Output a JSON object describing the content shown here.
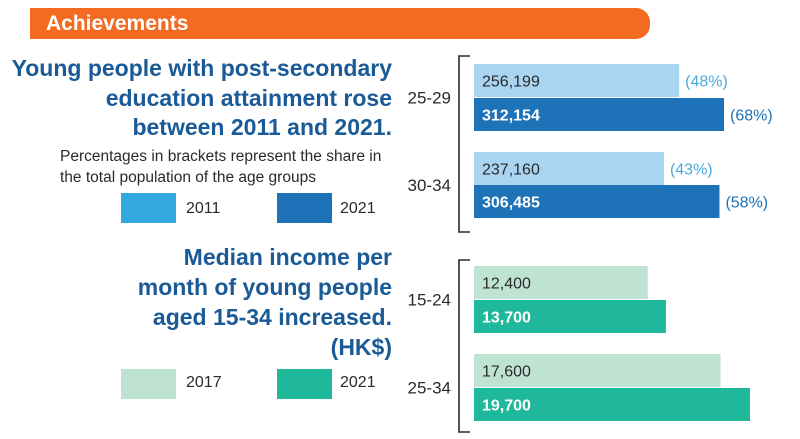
{
  "banner": {
    "title": "Achievements"
  },
  "education": {
    "headline": [
      "Young people with post-secondary",
      "education attainment rose",
      "between 2011 and 2021."
    ],
    "note": "Percentages in brackets represent the share in the total population of the age groups",
    "legend": [
      {
        "label": "2011",
        "color": "#33aadf"
      },
      {
        "label": "2021",
        "color": "#1e72b8"
      }
    ]
  },
  "income": {
    "headline": [
      "Median income per",
      "month of young people",
      "aged 15-34 increased.",
      "(HK$)"
    ],
    "legend": [
      {
        "label": "2017",
        "color": "#bfe3d3"
      },
      {
        "label": "2021",
        "color": "#1fb89a"
      }
    ]
  },
  "chart_data": [
    {
      "type": "bar",
      "orientation": "horizontal",
      "categories": [
        "25-29",
        "30-34"
      ],
      "series": [
        {
          "name": "2011",
          "values": [
            256199,
            237160
          ],
          "value_labels": [
            "256,199",
            "237,160"
          ],
          "percent_labels": [
            "(48%)",
            "(43%)"
          ],
          "color": "#a9d4f2",
          "pct_color": "#4aa8df",
          "text_color": "#2a2a2a",
          "bold": false
        },
        {
          "name": "2021",
          "values": [
            312154,
            306485
          ],
          "value_labels": [
            "312,154",
            "306,485"
          ],
          "percent_labels": [
            "(68%)",
            "(58%)"
          ],
          "color": "#1e72b8",
          "pct_color": "#1e72b8",
          "text_color": "#ffffff",
          "bold": true
        }
      ]
    },
    {
      "type": "bar",
      "orientation": "horizontal",
      "categories": [
        "15-24",
        "25-34"
      ],
      "series": [
        {
          "name": "2017",
          "values": [
            12400,
            17600
          ],
          "value_labels": [
            "12,400",
            "17,600"
          ],
          "color": "#bfe3d3",
          "text_color": "#2a2a2a",
          "bold": false
        },
        {
          "name": "2021",
          "values": [
            13700,
            19700
          ],
          "value_labels": [
            "13,700",
            "19,700"
          ],
          "color": "#1fb89a",
          "text_color": "#ffffff",
          "bold": true
        }
      ]
    }
  ]
}
